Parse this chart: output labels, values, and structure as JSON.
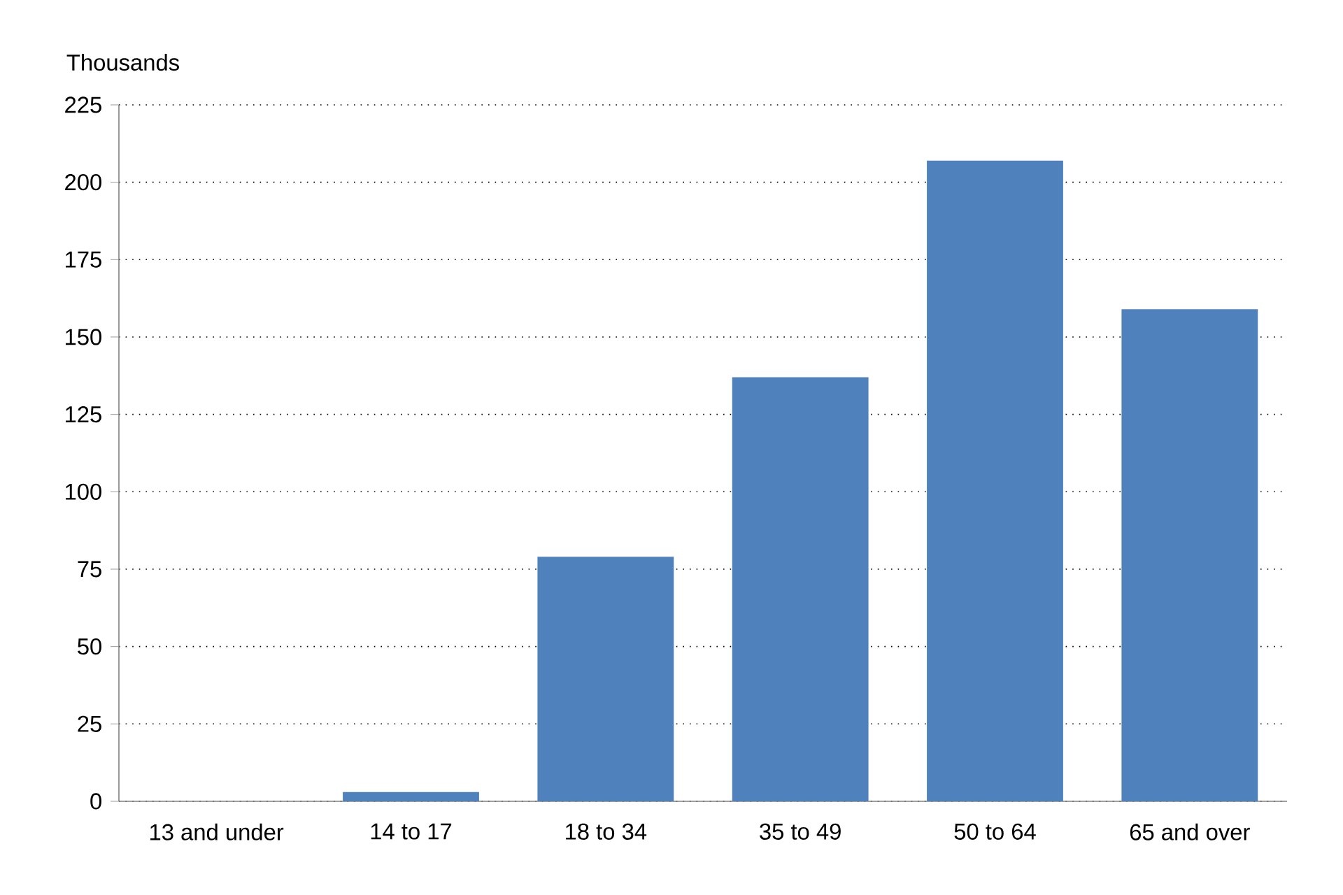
{
  "chart_data": {
    "type": "bar",
    "ylabel": "Thousands",
    "categories": [
      "13 and under",
      "14 to 17",
      "18 to 34",
      "35 to 49",
      "50 to 64",
      "65 and over"
    ],
    "values": [
      0,
      3,
      79,
      137,
      207,
      159
    ],
    "color": "#4f81bd",
    "ylim": [
      0,
      225
    ],
    "yticks": [
      0,
      25,
      50,
      75,
      100,
      125,
      150,
      175,
      200,
      225
    ],
    "grid": "y"
  }
}
